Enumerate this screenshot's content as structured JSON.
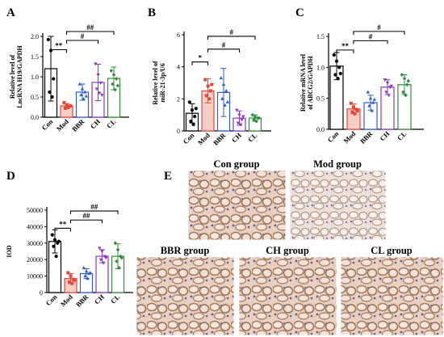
{
  "figure": {
    "colors": {
      "Con": "#000000",
      "Mod": "#e8483b",
      "BBR": "#2b5fc7",
      "CH": "#8e34c9",
      "CL": "#2e8b3a",
      "mod_fill": "#f6cfc4",
      "tissue_light": "#e9d2c7",
      "tissue_dark": "#a97f5f"
    },
    "micro_panel": {
      "letter": "E",
      "images": [
        {
          "key": "con",
          "label": "Con group"
        },
        {
          "key": "mod",
          "label": "Mod group"
        },
        {
          "key": "bbr",
          "label": "BBR group"
        },
        {
          "key": "ch",
          "label": "CH group"
        },
        {
          "key": "cl",
          "label": "CL group"
        }
      ]
    }
  },
  "chart_data": [
    {
      "id": "A",
      "letter": "A",
      "type": "bar",
      "categories": [
        "Con",
        "Mod",
        "BBR",
        "CH",
        "CL"
      ],
      "ylabel_lines": [
        "Relative level of",
        "LncRNA H19/GAPDH"
      ],
      "ylim": [
        0,
        2.0
      ],
      "yticks": [
        "0.0",
        "0.5",
        "1.0",
        "1.5",
        "2.0"
      ],
      "ytick_values": [
        0,
        0.5,
        1.0,
        1.5,
        2.0
      ],
      "values": [
        1.2,
        0.28,
        0.62,
        0.86,
        0.96
      ],
      "errors": [
        0.8,
        0.06,
        0.2,
        0.45,
        0.28
      ],
      "points": [
        [
          1.92,
          1.65,
          0.95,
          0.62,
          0.5
        ],
        [
          0.36,
          0.3,
          0.27,
          0.22,
          0.24,
          0.28
        ],
        [
          0.82,
          0.7,
          0.62,
          0.55,
          0.45,
          0.52
        ],
        [
          1.32,
          1.05,
          0.85,
          0.7,
          0.6,
          0.55
        ],
        [
          1.15,
          1.05,
          0.95,
          0.82,
          0.68,
          0.78
        ]
      ],
      "annotations": [
        {
          "from": 0,
          "to": 1,
          "label": "**",
          "y": 1.67
        },
        {
          "from": 1,
          "to": 3,
          "label": "#",
          "y": 1.9
        },
        {
          "from": 1,
          "to": 4,
          "label": "##",
          "y": 2.12
        }
      ]
    },
    {
      "id": "B",
      "letter": "B",
      "type": "bar",
      "categories": [
        "Con",
        "Mod",
        "BBR",
        "CH",
        "CL"
      ],
      "ylabel_lines": [
        "Relative level of",
        "miR-21-3p/U6"
      ],
      "ylim": [
        0,
        6
      ],
      "yticks": [
        "0",
        "2",
        "4",
        "6"
      ],
      "ytick_values": [
        0,
        2,
        4,
        6
      ],
      "values": [
        1.1,
        2.5,
        2.4,
        0.8,
        0.8
      ],
      "errors": [
        0.6,
        0.75,
        1.5,
        0.45,
        0.2
      ],
      "points": [
        [
          1.8,
          1.3,
          0.9,
          0.6,
          0.4,
          1.4
        ],
        [
          3.2,
          2.8,
          2.5,
          2.2,
          2.0,
          2.9
        ],
        [
          3.3,
          2.9,
          2.5,
          2.0,
          1.6,
          1.8
        ],
        [
          1.3,
          1.0,
          0.7,
          0.5,
          0.4,
          0.9
        ],
        [
          1.0,
          0.9,
          0.8,
          0.7,
          0.6,
          0.8
        ]
      ],
      "annotations": [
        {
          "from": 0,
          "to": 1,
          "label": "*",
          "y": 4.3
        },
        {
          "from": 1,
          "to": 3,
          "label": "#",
          "y": 5.1
        },
        {
          "from": 1,
          "to": 4,
          "label": "#",
          "y": 5.9
        }
      ]
    },
    {
      "id": "C",
      "letter": "C",
      "type": "bar",
      "categories": [
        "Con",
        "Mod",
        "BBR",
        "CH",
        "CL"
      ],
      "ylabel_lines": [
        "Relative mRNA level",
        "of ABCG2/GAPDH"
      ],
      "ylim": [
        0,
        1.5
      ],
      "yticks": [
        "0.0",
        "0.5",
        "1.0",
        "1.5"
      ],
      "ytick_values": [
        0,
        0.5,
        1.0,
        1.5
      ],
      "values": [
        1.02,
        0.33,
        0.43,
        0.68,
        0.72
      ],
      "errors": [
        0.22,
        0.08,
        0.12,
        0.12,
        0.16
      ],
      "points": [
        [
          1.2,
          1.1,
          1.0,
          0.88,
          0.82,
          0.9
        ],
        [
          0.42,
          0.36,
          0.32,
          0.28,
          0.25,
          0.3
        ],
        [
          0.6,
          0.5,
          0.43,
          0.38,
          0.3,
          0.48
        ],
        [
          0.8,
          0.75,
          0.68,
          0.6,
          0.55,
          0.7
        ],
        [
          0.88,
          0.82,
          0.72,
          0.6,
          0.55,
          0.78
        ]
      ],
      "annotations": [
        {
          "from": 0,
          "to": 1,
          "label": "**",
          "y": 1.28
        },
        {
          "from": 1,
          "to": 3,
          "label": "#",
          "y": 1.43
        },
        {
          "from": 1,
          "to": 4,
          "label": "#",
          "y": 1.58
        }
      ]
    },
    {
      "id": "D",
      "letter": "D",
      "type": "bar",
      "categories": [
        "Con",
        "Mod",
        "BBR",
        "CH",
        "CL"
      ],
      "ylabel_lines": [
        "IOD"
      ],
      "ylim": [
        0,
        50000
      ],
      "yticks": [
        "0",
        "10000",
        "20000",
        "30000",
        "40000",
        "50000"
      ],
      "ytick_values": [
        0,
        10000,
        20000,
        30000,
        40000,
        50000
      ],
      "values": [
        31000,
        8500,
        11500,
        22000,
        22000
      ],
      "errors": [
        7000,
        3000,
        3000,
        4000,
        7500
      ],
      "points": [
        [
          35000,
          32000,
          30000,
          28000,
          22000,
          31000
        ],
        [
          12000,
          10000,
          8000,
          6500,
          5500,
          7500
        ],
        [
          15000,
          13000,
          11500,
          10000,
          8500,
          12000
        ],
        [
          27000,
          25000,
          22000,
          20000,
          18000,
          21000
        ],
        [
          30000,
          26000,
          22000,
          19000,
          15000,
          21000
        ]
      ],
      "annotations": [
        {
          "from": 0,
          "to": 1,
          "label": "**",
          "y": 39000
        },
        {
          "from": 1,
          "to": 3,
          "label": "##",
          "y": 44000
        },
        {
          "from": 1,
          "to": 4,
          "label": "##",
          "y": 49500
        }
      ]
    }
  ]
}
